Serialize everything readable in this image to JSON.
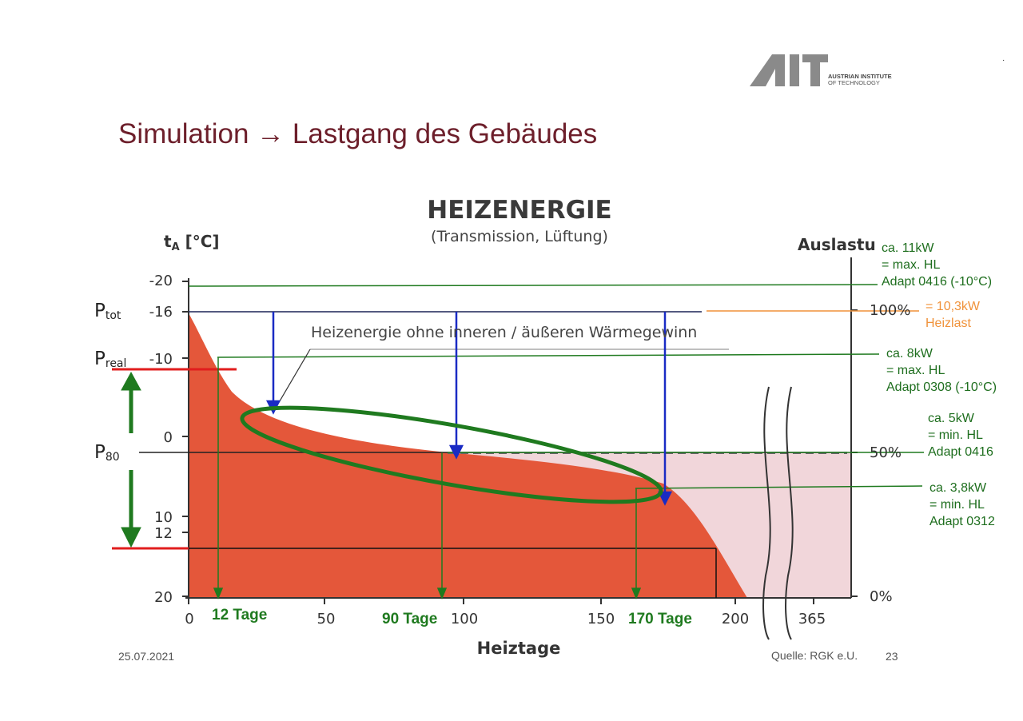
{
  "slide": {
    "title": "Simulation → Lastgang des Gebäudes",
    "date": "25.07.2021",
    "source": "Quelle: RGK e.U.",
    "page": "23"
  },
  "logo": {
    "line1": "AUSTRIAN INSTITUTE",
    "line2": "OF TECHNOLOGY"
  },
  "diagram": {
    "title": "HEIZENERGIE",
    "subtitle": "(Transmission, Lüftung)",
    "y_axis_label_main": "t",
    "y_axis_label_sub": "A",
    "y_axis_label_unit": " [°C]",
    "right_axis_label": "Auslastu",
    "x_axis_label": "Heiztage",
    "curve_label": "Heizenergie ohne inneren / äußeren Wärmegewinn",
    "left_ticks": [
      "-20",
      "-16",
      "-10",
      "0",
      "10",
      "12",
      "20"
    ],
    "right_ticks": [
      "100%",
      "50%",
      "0%"
    ],
    "bottom_ticks": [
      "0",
      "50",
      "100",
      "150",
      "200",
      "365"
    ],
    "power_labels": [
      {
        "main": "P",
        "sub": "tot"
      },
      {
        "main": "P",
        "sub": "real"
      },
      {
        "main": "P",
        "sub": "80"
      }
    ],
    "day_markers": [
      "12 Tage",
      "90 Tage",
      "170 Tage"
    ],
    "annotations_green": [
      "ca. 11kW\n= max. HL\nAdapt 0416 (-10°C)",
      "ca. 8kW\n= max. HL\nAdapt 0308 (-10°C)",
      "ca. 5kW\n= min. HL\nAdapt 0416",
      "ca. 3,8kW\n= min. HL\nAdapt 0312"
    ],
    "annotation_orange": "= 10,3kW\nHeizlast",
    "colors": {
      "area_fill": "#e4573a",
      "area_light": "#f1d6da",
      "green": "#1f7a1f",
      "blue": "#1a2bc4",
      "red": "#e11d1d",
      "orange": "#f0923a",
      "title": "#6d1f2b"
    }
  }
}
